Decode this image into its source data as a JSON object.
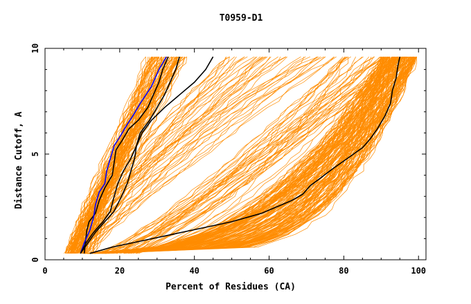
{
  "chart_data": {
    "type": "line",
    "title": "T0959-D1",
    "xlabel": "Percent of Residues (CA)",
    "ylabel": "Distance Cutoff, A",
    "xlim": [
      0,
      102
    ],
    "ylim": [
      0,
      10
    ],
    "x_ticks": [
      0,
      20,
      40,
      60,
      80,
      100
    ],
    "y_ticks": [
      0,
      5,
      10
    ],
    "grid": false,
    "legend": "none",
    "colors": {
      "background_models": "#ff8c00",
      "highlight_black": "#000000",
      "highlight_blue": "#0000ff"
    },
    "series": [
      {
        "color": "#000000",
        "x": [
          10.5,
          10.8,
          11.2,
          11.8,
          13.5,
          14.5,
          16,
          18,
          18.5,
          19,
          20.5,
          22.5,
          25,
          27.5,
          29,
          30.5,
          31.5,
          33
        ],
        "y": [
          0.3,
          0.8,
          1.4,
          1.8,
          2.2,
          2.8,
          3.4,
          4.0,
          4.6,
          5.2,
          5.6,
          6.2,
          6.6,
          7.2,
          7.8,
          8.4,
          9.0,
          9.6
        ]
      },
      {
        "color": "#0000ff",
        "x": [
          9.5,
          10.5,
          12,
          13,
          13.5,
          14.5,
          16,
          16.5,
          17.5,
          18.5,
          20,
          22,
          23.5,
          25.5,
          27,
          28.5,
          29.5,
          30.5,
          31.5,
          32.5
        ],
        "y": [
          0.3,
          0.8,
          1.4,
          2.0,
          2.6,
          3.2,
          3.6,
          4.2,
          4.8,
          5.4,
          5.8,
          6.4,
          6.8,
          7.4,
          7.8,
          8.2,
          8.6,
          9.0,
          9.3,
          9.6
        ]
      },
      {
        "color": "#000000",
        "x": [
          9.5,
          11,
          13,
          15.5,
          17.5,
          18.5,
          19.5,
          21,
          23,
          24.5,
          25.5,
          28,
          30,
          32,
          33.5,
          35,
          36
        ],
        "y": [
          0.3,
          0.8,
          1.3,
          1.8,
          2.3,
          3.0,
          3.6,
          4.2,
          4.8,
          5.4,
          6.0,
          6.6,
          7.2,
          7.8,
          8.4,
          9.0,
          9.6
        ]
      },
      {
        "color": "#000000",
        "x": [
          9.5,
          11.5,
          13.5,
          16,
          18.5,
          20.5,
          22,
          23,
          24,
          24.5,
          26,
          28.5,
          32,
          36,
          40,
          43,
          45
        ],
        "y": [
          0.3,
          0.8,
          1.3,
          1.8,
          2.3,
          3.0,
          3.6,
          4.2,
          4.8,
          5.4,
          6.0,
          6.6,
          7.2,
          7.8,
          8.4,
          9.0,
          9.6
        ]
      },
      {
        "color": "#000000",
        "x": [
          12,
          18,
          26,
          34,
          42,
          50,
          58,
          62,
          66,
          69,
          71,
          74,
          77,
          81,
          85,
          87,
          89,
          91,
          92.5,
          93,
          94,
          94.5,
          95
        ],
        "y": [
          0.3,
          0.6,
          0.9,
          1.2,
          1.5,
          1.8,
          2.2,
          2.5,
          2.8,
          3.1,
          3.5,
          3.9,
          4.3,
          4.8,
          5.3,
          5.7,
          6.2,
          6.8,
          7.4,
          8.0,
          8.6,
          9.2,
          9.6
        ]
      }
    ]
  }
}
